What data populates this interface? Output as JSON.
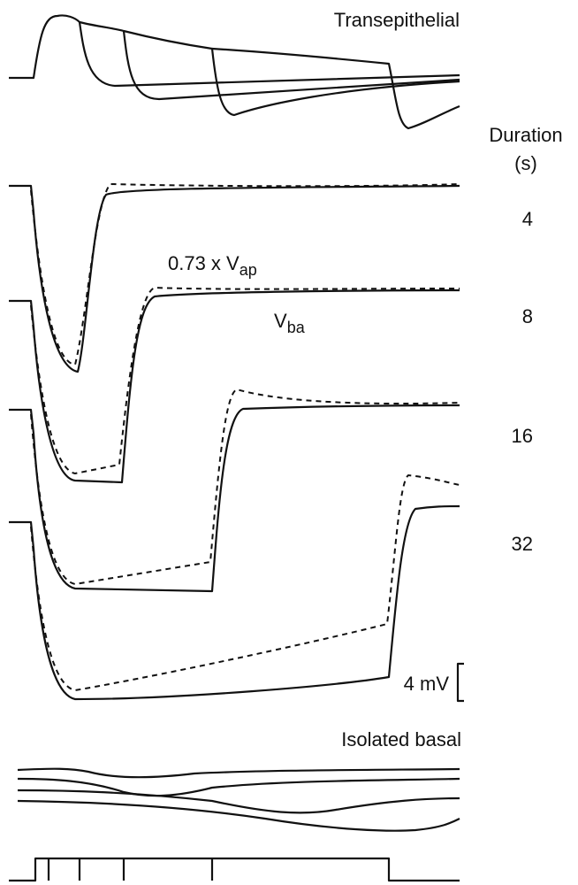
{
  "labels": {
    "transepithelial": "Transepithelial",
    "duration": "Duration",
    "duration_unit": "(s)",
    "apical_factor": "0.73 x V",
    "apical_sub": "ap",
    "basal_v": "V",
    "basal_sub": "ba",
    "scale": "4 mV",
    "isolated_basal": "Isolated basal"
  },
  "durations": [
    4,
    8,
    16,
    32
  ]
}
